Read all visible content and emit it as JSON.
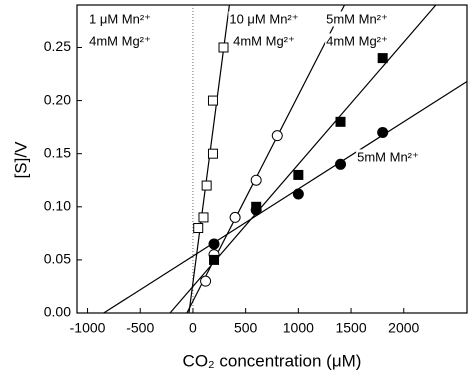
{
  "chart_data": {
    "type": "scatter",
    "x_label": "CO₂ concentration (μM)",
    "y_label": "[S]/V",
    "xlim": [
      -1100,
      2600
    ],
    "ylim": [
      0,
      0.29
    ],
    "xticks": [
      -1000,
      -500,
      0,
      500,
      1000,
      1500,
      2000
    ],
    "yticks": [
      {
        "value": 0,
        "label": "0.00"
      },
      {
        "value": 0.05,
        "label": "0.05"
      },
      {
        "value": 0.1,
        "label": "0.10"
      },
      {
        "value": 0.15,
        "label": "0.15"
      },
      {
        "value": 0.2,
        "label": "0.20"
      },
      {
        "value": 0.25,
        "label": "0.25"
      }
    ],
    "series": [
      {
        "label": [
          "1 μM Mn²⁺",
          "4mM Mg²⁺"
        ],
        "marker": "square",
        "filled": false,
        "color": "#000000",
        "x": [
          50,
          100,
          130,
          190,
          190,
          290
        ],
        "values": [
          0.08,
          0.09,
          0.12,
          0.15,
          0.2,
          0.25
        ]
      },
      {
        "label": [
          "10 μM Mn²⁺",
          "4mM Mg²⁺"
        ],
        "marker": "circle",
        "filled": false,
        "color": "#000000",
        "x": [
          120,
          200,
          400,
          600,
          800
        ],
        "values": [
          0.03,
          0.055,
          0.09,
          0.125,
          0.167
        ]
      },
      {
        "label": [
          "5mM Mn²⁺",
          "4mM Mg²⁺"
        ],
        "marker": "square",
        "filled": true,
        "color": "#000000",
        "x": [
          200,
          600,
          1000,
          1400,
          1800
        ],
        "values": [
          0.05,
          0.1,
          0.13,
          0.18,
          0.24
        ]
      },
      {
        "label": [
          "5mM Mn²⁺"
        ],
        "marker": "circle",
        "filled": true,
        "color": "#000000",
        "x": [
          200,
          600,
          1000,
          1400,
          1800
        ],
        "values": [
          0.065,
          0.097,
          0.112,
          0.14,
          0.17
        ]
      }
    ]
  }
}
